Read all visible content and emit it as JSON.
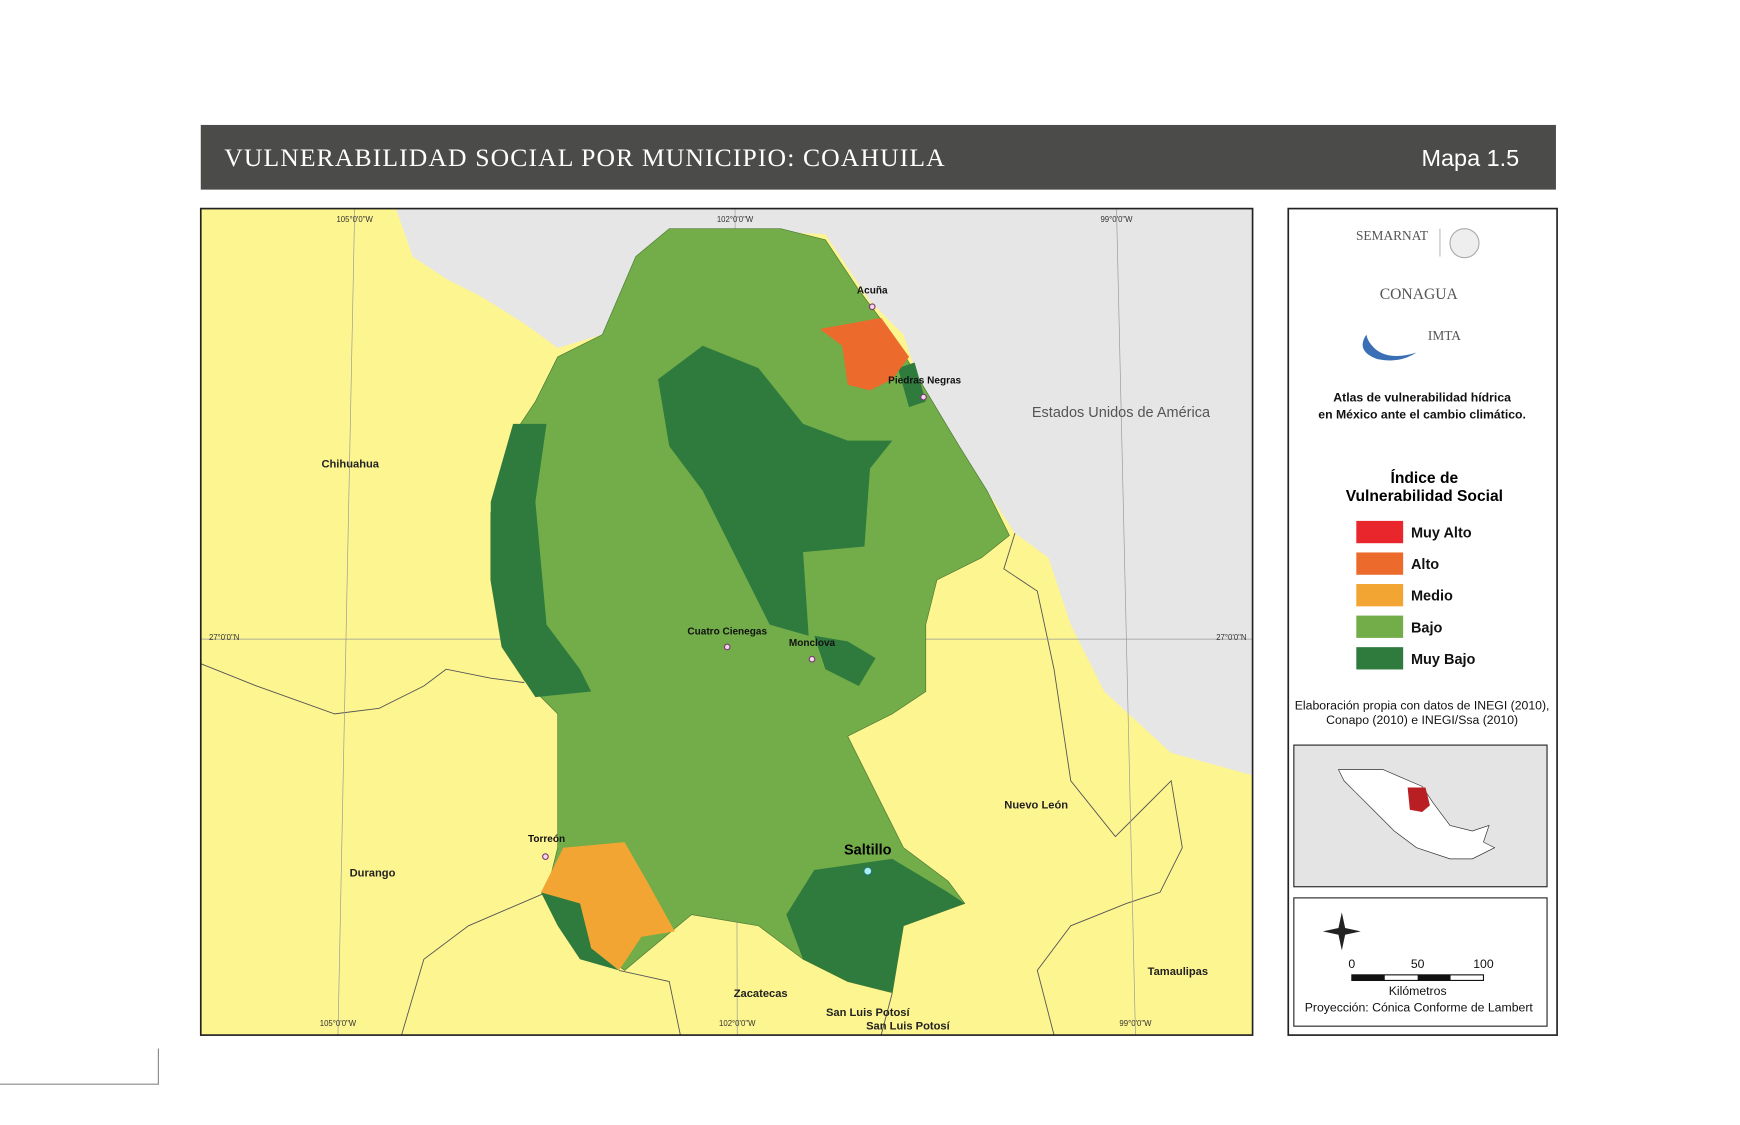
{
  "header": {
    "title": "VULNERABILIDAD SOCIAL POR MUNICIPIO: COAHUILA",
    "map_number": "Mapa 1.5"
  },
  "map": {
    "graticule_labels": {
      "top": [
        "105°0'0\"W",
        "102°0'0\"W",
        "99°0'0\"W"
      ],
      "bottom": [
        "105°0'0\"W",
        "102°0'0\"W",
        "99°0'0\"W"
      ],
      "left": "27°0'0\"N",
      "right": "27°0'0\"N"
    },
    "regions": [
      "Estados Unidos de América",
      "Chihuahua",
      "Durango",
      "Zacatecas",
      "San Luis Potosí",
      "San Luis Potosí",
      "Nuevo León",
      "Tamaulipas"
    ],
    "cities": [
      "Acuña",
      "Piedras Negras",
      "Cuatro Cienegas",
      "Monclova",
      "Torreón",
      "Saltillo"
    ]
  },
  "sidebar": {
    "logos": [
      "SEMARNAT",
      "CONAGUA",
      "IMTA"
    ],
    "atlas": [
      "Atlas de vulnerabilidad  hídrica",
      "en México ante el cambio climático."
    ],
    "legend": {
      "title": [
        "Índice de",
        "Vulnerabilidad Social"
      ],
      "items": [
        {
          "name": "Muy Alto",
          "color": "#e8262b"
        },
        {
          "name": "Alto",
          "color": "#ec6a2c"
        },
        {
          "name": "Medio",
          "color": "#f3a533"
        },
        {
          "name": "Bajo",
          "color": "#72ad4a"
        },
        {
          "name": "Muy Bajo",
          "color": "#2f7a3d"
        }
      ]
    },
    "source": [
      "Elaboración propia con datos de INEGI (2010),",
      "Conapo (2010) e INEGI/Ssa (2010)"
    ],
    "scale": {
      "ticks": [
        "0",
        "50",
        "100"
      ],
      "unit": "Kilómetros"
    },
    "projection": "Proyección: Cónica Conforme de Lambert"
  }
}
